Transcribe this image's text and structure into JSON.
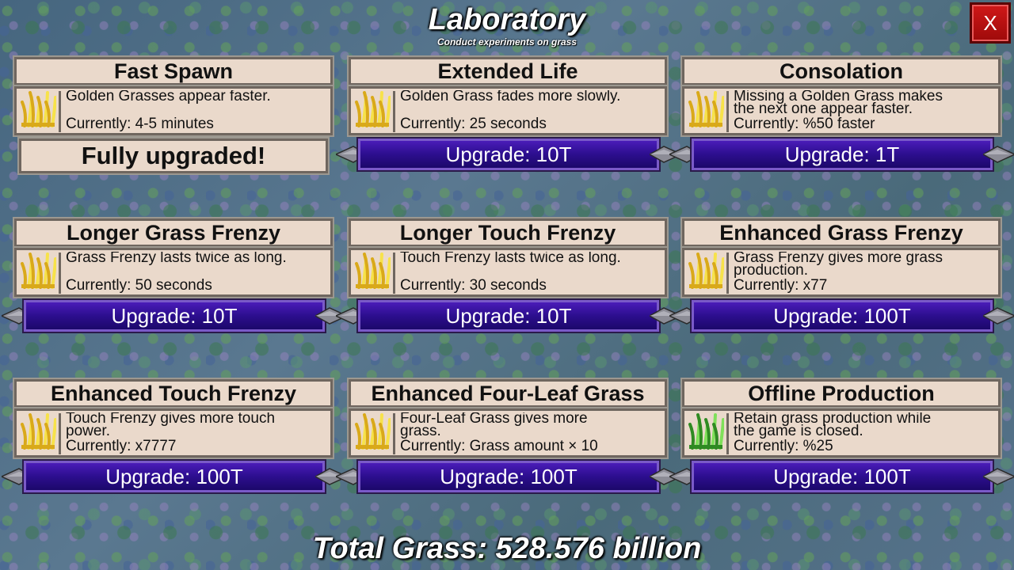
{
  "header": {
    "title": "Laboratory",
    "subtitle": "Conduct experiments on grass",
    "close_label": "X"
  },
  "footer": {
    "total_label": "Total Grass: 528.576 billion"
  },
  "colors": {
    "panel_bg": "#ead9cb",
    "upgrade_button": "#3a14a0",
    "close_button": "#c01010"
  },
  "upgrades": [
    {
      "title": "Fast Spawn",
      "description": "Golden Grasses appear faster.",
      "current": "Currently: 4-5 minutes",
      "button": "",
      "status": "Fully upgraded!",
      "icon": "golden-grass-icon"
    },
    {
      "title": "Extended Life",
      "description": "Golden Grass fades more slowly.",
      "current": "Currently: 25 seconds",
      "button": "Upgrade: 10T",
      "status": "",
      "icon": "golden-grass-icon"
    },
    {
      "title": "Consolation",
      "description": "Missing a Golden Grass makes\nthe next one appear faster.",
      "current": "Currently: %50 faster",
      "button": "Upgrade: 1T",
      "status": "",
      "icon": "golden-grass-icon"
    },
    {
      "title": "Longer Grass Frenzy",
      "description": "Grass Frenzy lasts twice as long.",
      "current": "Currently: 50 seconds",
      "button": "Upgrade: 10T",
      "status": "",
      "icon": "golden-grass-icon"
    },
    {
      "title": "Longer Touch Frenzy",
      "description": "Touch Frenzy lasts twice as long.",
      "current": "Currently: 30 seconds",
      "button": "Upgrade: 10T",
      "status": "",
      "icon": "golden-grass-icon"
    },
    {
      "title": "Enhanced Grass Frenzy",
      "description": "Grass Frenzy gives more grass\nproduction.",
      "current": "Currently: x77",
      "button": "Upgrade: 100T",
      "status": "",
      "icon": "golden-grass-icon"
    },
    {
      "title": "Enhanced Touch Frenzy",
      "description": "Touch Frenzy gives more touch\npower.",
      "current": "Currently: x7777",
      "button": "Upgrade: 100T",
      "status": "",
      "icon": "golden-grass-icon"
    },
    {
      "title": "Enhanced Four-Leaf Grass",
      "description": "Four-Leaf Grass gives more\ngrass.",
      "current": "Currently: Grass amount × 10",
      "button": "Upgrade: 100T",
      "status": "",
      "icon": "golden-grass-icon"
    },
    {
      "title": "Offline Production",
      "description": "Retain grass production while\nthe game is closed.",
      "current": "Currently: %25",
      "button": "Upgrade: 100T",
      "status": "",
      "icon": "green-grass-icon"
    }
  ]
}
